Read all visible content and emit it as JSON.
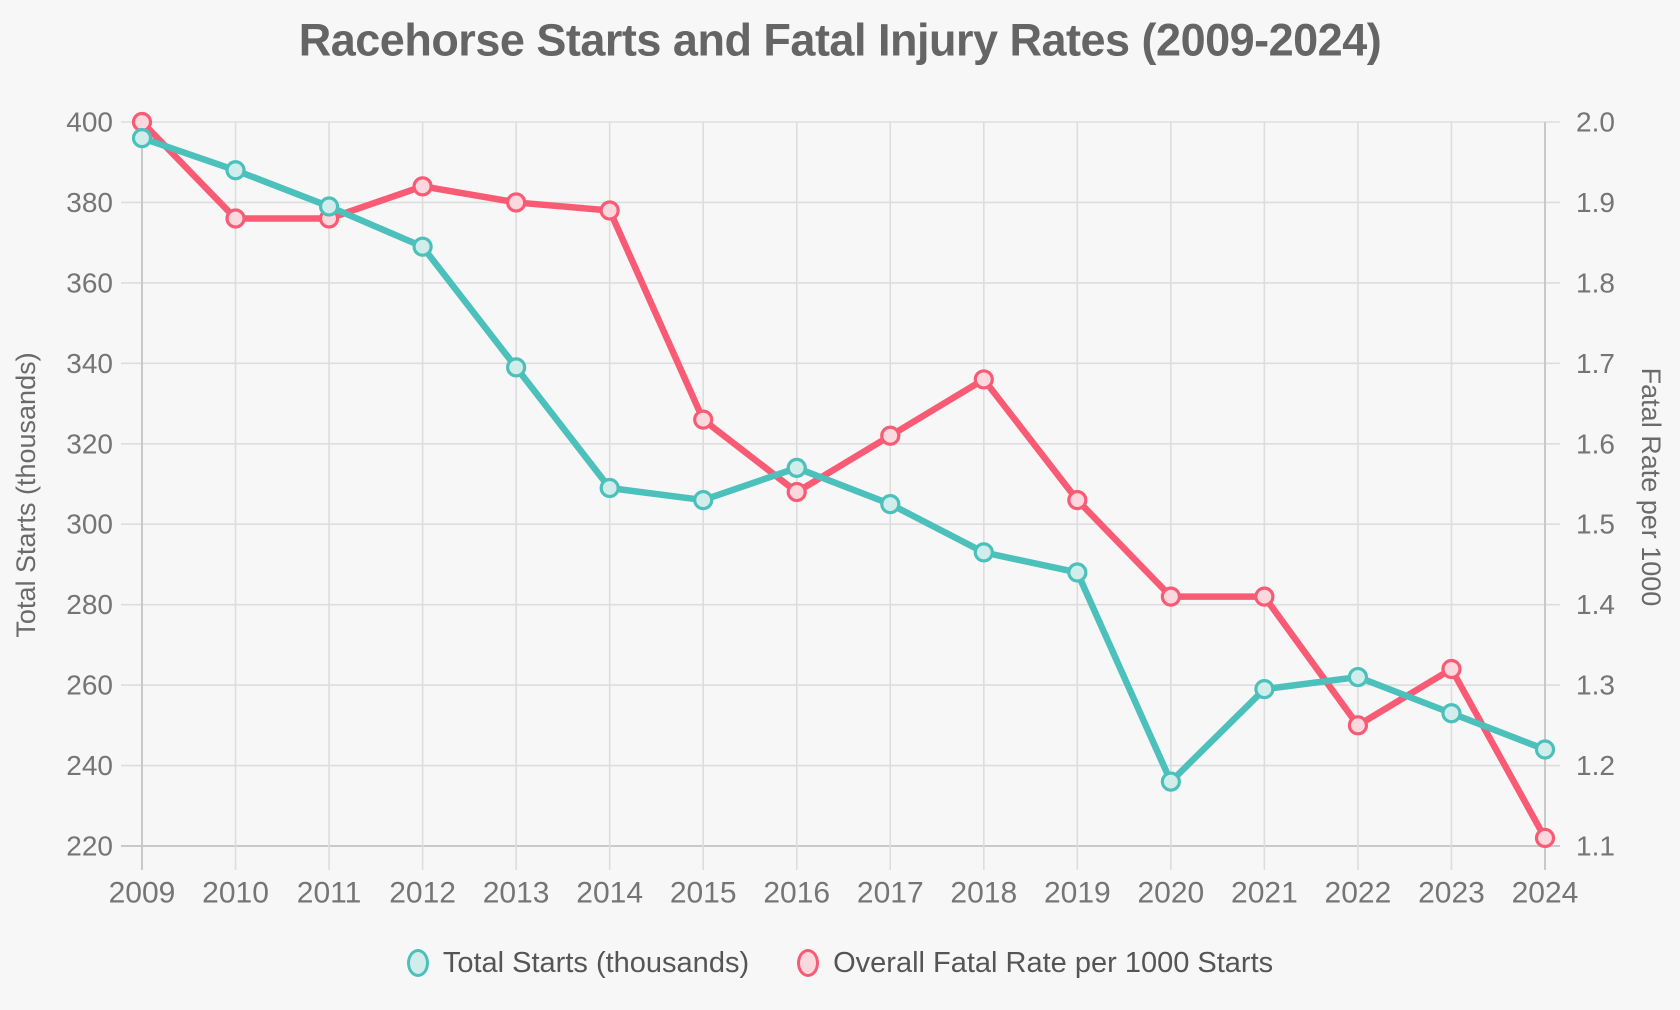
{
  "title": "Racehorse Starts and Fatal Injury Rates (2009-2024)",
  "chart_data": {
    "type": "line",
    "x_labels": [
      "2009",
      "2010",
      "2011",
      "2012",
      "2013",
      "2014",
      "2015",
      "2016",
      "2017",
      "2018",
      "2019",
      "2020",
      "2021",
      "2022",
      "2023",
      "2024"
    ],
    "series": [
      {
        "name": "Total Starts (thousands)",
        "axis": "left",
        "color": "#4CC0BB",
        "marker_fill": "#D0EDEB",
        "values": [
          396,
          388,
          379,
          369,
          339,
          309,
          306,
          314,
          305,
          293,
          288,
          236,
          259,
          262,
          253,
          244
        ]
      },
      {
        "name": "Overall Fatal Rate per 1000 Starts",
        "axis": "right",
        "color": "#F95B74",
        "marker_fill": "#FBD8DE",
        "values": [
          2.0,
          1.88,
          1.88,
          1.92,
          1.9,
          1.89,
          1.63,
          1.54,
          1.61,
          1.68,
          1.53,
          1.41,
          1.41,
          1.25,
          1.32,
          1.11
        ]
      }
    ],
    "y_left": {
      "title": "Total Starts (thousands)",
      "min": 220,
      "max": 400,
      "step": 20,
      "tick_labels": [
        "400",
        "380",
        "360",
        "340",
        "320",
        "300",
        "280",
        "260",
        "240",
        "220"
      ]
    },
    "y_right": {
      "title": "Fatal Rate per 1000",
      "min": 1.1,
      "max": 2.0,
      "step": 0.1,
      "tick_labels": [
        "2.0",
        "1.9",
        "1.8",
        "1.7",
        "1.6",
        "1.5",
        "1.4",
        "1.3",
        "1.2",
        "1.1"
      ]
    },
    "grid": true,
    "legend_position": "bottom"
  },
  "legend": {
    "items": [
      {
        "label": "Total Starts (thousands)",
        "color": "#4CC0BB",
        "fill": "#D0EDEB"
      },
      {
        "label": "Overall Fatal Rate per 1000 Starts",
        "color": "#F95B74",
        "fill": "#FBD8DE"
      }
    ]
  },
  "colors": {
    "background": "#F7F7F7",
    "grid": "#DDDDDD",
    "axis_border": "#C9C9C9",
    "title_text": "#656565",
    "tick_text": "#757575",
    "axis_title_text": "#6A6A6A",
    "legend_text": "#555555"
  }
}
